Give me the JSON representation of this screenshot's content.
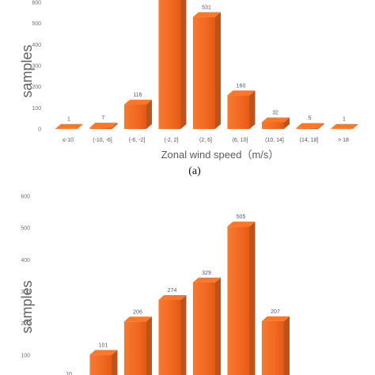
{
  "chart_data": [
    {
      "type": "bar",
      "categories": [
        "≤-10",
        "(-10, -6]",
        "(-6, -2]",
        "(-2, 2]",
        "(2, 6]",
        "(6, 10]",
        "(10, 14]",
        "(14, 18]",
        "> 18"
      ],
      "values": [
        1,
        7,
        116,
        630,
        531,
        160,
        32,
        5,
        1
      ],
      "data_labels": [
        "1",
        "7",
        "116",
        "",
        "531",
        "160",
        "32",
        "5",
        "1"
      ],
      "ylabel": "samples",
      "xlabel": "Zonal wind speed（m/s）",
      "yticks": [
        "0",
        "100",
        "200",
        "300",
        "400",
        "500",
        "600"
      ],
      "ylim": [
        0,
        600
      ],
      "caption": "(a)",
      "bar_color": "#f26a22",
      "grid": false
    },
    {
      "type": "bar",
      "values": [
        10,
        101,
        206,
        274,
        329,
        505,
        207
      ],
      "data_labels": [
        "10",
        "101",
        "206",
        "274",
        "329",
        "505",
        "207"
      ],
      "ylabel": "samples",
      "yticks": [
        "100",
        "200",
        "300",
        "400",
        "500",
        "600"
      ],
      "ylim": [
        0,
        600
      ],
      "bar_color": "#f26a22",
      "grid": false
    }
  ]
}
